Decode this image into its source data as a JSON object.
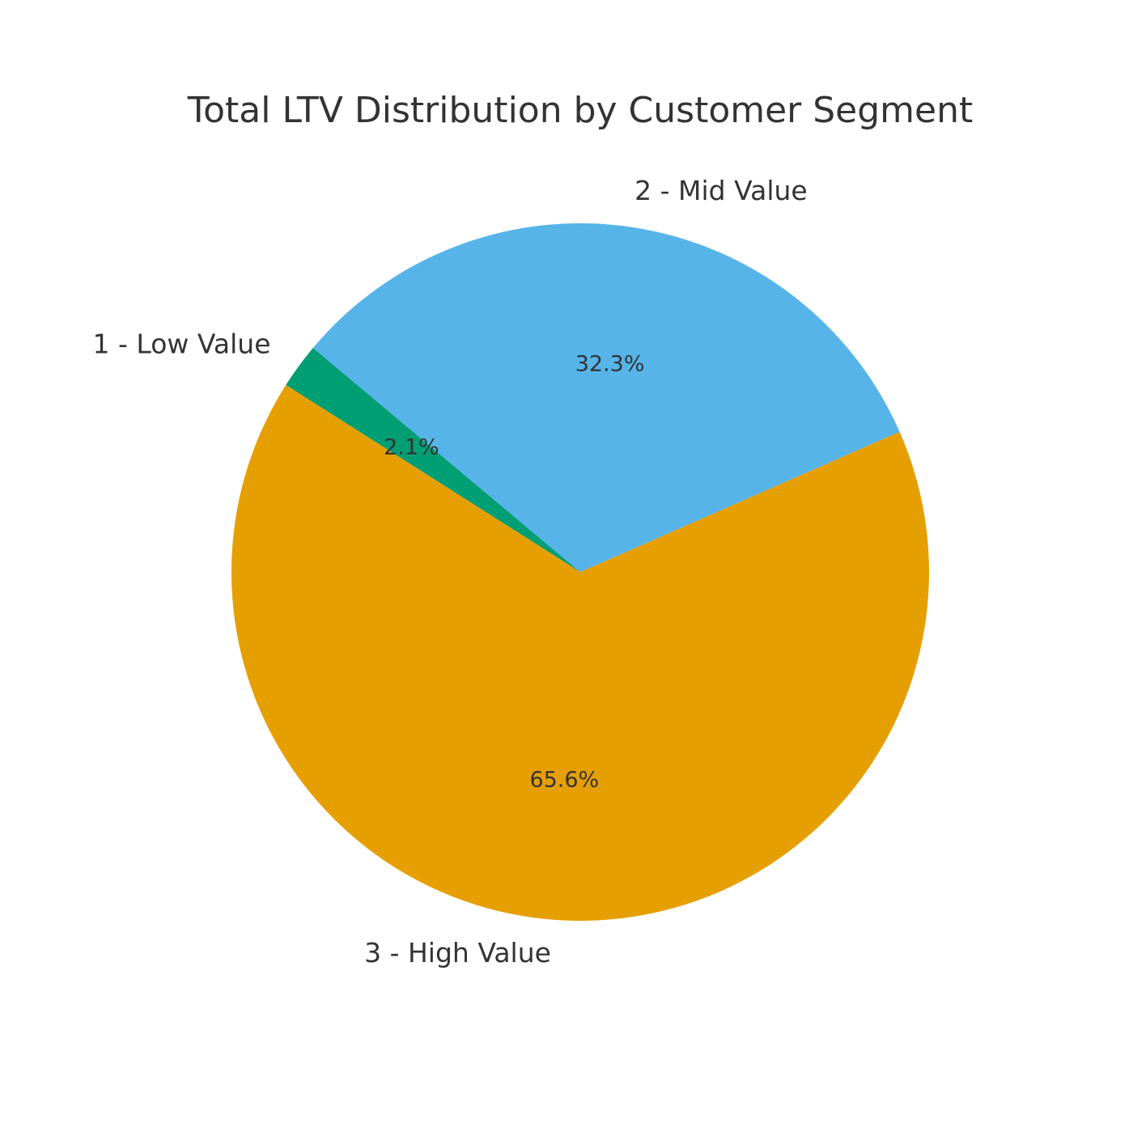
{
  "chart_data": {
    "type": "pie",
    "title": "Total LTV Distribution by Customer Segment",
    "start_angle_deg": 140,
    "direction": "counterclockwise",
    "slices": [
      {
        "label": "1 - Low Value",
        "value": 2.1,
        "pct_label": "2.1%",
        "color": "#009E73"
      },
      {
        "label": "3 - High Value",
        "value": 65.6,
        "pct_label": "65.6%",
        "color": "#E69F00"
      },
      {
        "label": "2 - Mid Value",
        "value": 32.3,
        "pct_label": "32.3%",
        "color": "#56B4E9"
      }
    ]
  }
}
